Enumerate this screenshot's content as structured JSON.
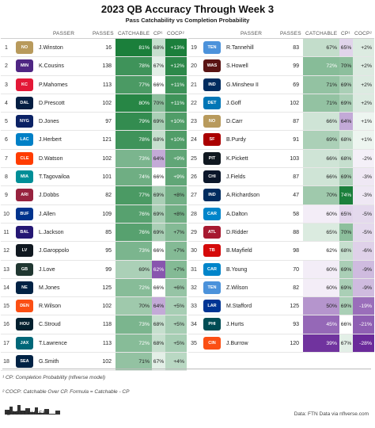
{
  "title": "2023 QB Accuracy Through Week 3",
  "subtitle": "Pass Catchability vs Completion Probability",
  "columns": {
    "passer": "PASSER",
    "passes": "PASSES",
    "catchable": "CATCHABLE",
    "cp": "CP¹",
    "cocp": "COCP²"
  },
  "footnote1": "¹ CP: Completion Probability (nflverse model)",
  "footnote2": "² COCP: Catchable Over CP. Formula = Catchable - CP",
  "brand": "@JOSEPHJEFE",
  "source": "Data: FTN Data via nflverse.com",
  "colors": {
    "green_dark": "#1b7f3b",
    "green_light": "#e8f5e9",
    "purple_dark": "#6a2a9a",
    "purple_light": "#f3e9f7"
  },
  "chart_data": {
    "type": "table",
    "rows": [
      {
        "rank": "1",
        "logo": "NO",
        "logo_color": "#b89a5c",
        "passer": "J.Winston",
        "passes": "16",
        "catchable": "81%",
        "catchable_v": 81,
        "cp": "68%",
        "cp_v": 68,
        "cocp": "+13%",
        "cocp_v": 13
      },
      {
        "rank": "2",
        "logo": "MIN",
        "logo_color": "#4f2683",
        "passer": "K.Cousins",
        "passes": "138",
        "catchable": "78%",
        "catchable_v": 78,
        "cp": "67%",
        "cp_v": 67,
        "cocp": "+12%",
        "cocp_v": 12
      },
      {
        "rank": "3",
        "logo": "KC",
        "logo_color": "#e31837",
        "passer": "P.Mahomes",
        "passes": "113",
        "catchable": "77%",
        "catchable_v": 77,
        "cp": "66%",
        "cp_v": 66,
        "cocp": "+11%",
        "cocp_v": 11
      },
      {
        "rank": "4",
        "logo": "DAL",
        "logo_color": "#041e42",
        "passer": "D.Prescott",
        "passes": "102",
        "catchable": "80%",
        "catchable_v": 80,
        "cp": "70%",
        "cp_v": 70,
        "cocp": "+11%",
        "cocp_v": 11
      },
      {
        "rank": "5",
        "logo": "NYG",
        "logo_color": "#0b2265",
        "passer": "D.Jones",
        "passes": "97",
        "catchable": "79%",
        "catchable_v": 79,
        "cp": "69%",
        "cp_v": 69,
        "cocp": "+10%",
        "cocp_v": 10
      },
      {
        "rank": "6",
        "logo": "LAC",
        "logo_color": "#0080c6",
        "passer": "J.Herbert",
        "passes": "121",
        "catchable": "78%",
        "catchable_v": 78,
        "cp": "68%",
        "cp_v": 68,
        "cocp": "+10%",
        "cocp_v": 10
      },
      {
        "rank": "7",
        "logo": "CLE",
        "logo_color": "#ff3c00",
        "passer": "D.Watson",
        "passes": "102",
        "catchable": "73%",
        "catchable_v": 73,
        "cp": "64%",
        "cp_v": 64,
        "cocp": "+9%",
        "cocp_v": 9
      },
      {
        "rank": "8",
        "logo": "MIA",
        "logo_color": "#008e97",
        "passer": "T.Tagovailoa",
        "passes": "101",
        "catchable": "74%",
        "catchable_v": 74,
        "cp": "66%",
        "cp_v": 66,
        "cocp": "+9%",
        "cocp_v": 9
      },
      {
        "rank": "9",
        "logo": "ARI",
        "logo_color": "#97233f",
        "passer": "J.Dobbs",
        "passes": "82",
        "catchable": "77%",
        "catchable_v": 77,
        "cp": "69%",
        "cp_v": 69,
        "cocp": "+8%",
        "cocp_v": 8
      },
      {
        "rank": "10",
        "logo": "BUF",
        "logo_color": "#00338d",
        "passer": "J.Allen",
        "passes": "109",
        "catchable": "76%",
        "catchable_v": 76,
        "cp": "69%",
        "cp_v": 69,
        "cocp": "+8%",
        "cocp_v": 8
      },
      {
        "rank": "11",
        "logo": "BAL",
        "logo_color": "#241773",
        "passer": "L.Jackson",
        "passes": "85",
        "catchable": "76%",
        "catchable_v": 76,
        "cp": "69%",
        "cp_v": 69,
        "cocp": "+7%",
        "cocp_v": 7
      },
      {
        "rank": "12",
        "logo": "LV",
        "logo_color": "#101820",
        "passer": "J.Garoppolo",
        "passes": "95",
        "catchable": "73%",
        "catchable_v": 73,
        "cp": "66%",
        "cp_v": 66,
        "cocp": "+7%",
        "cocp_v": 7
      },
      {
        "rank": "13",
        "logo": "GB",
        "logo_color": "#203731",
        "passer": "J.Love",
        "passes": "99",
        "catchable": "69%",
        "catchable_v": 69,
        "cp": "62%",
        "cp_v": 62,
        "cocp": "+7%",
        "cocp_v": 7
      },
      {
        "rank": "14",
        "logo": "NE",
        "logo_color": "#002244",
        "passer": "M.Jones",
        "passes": "125",
        "catchable": "72%",
        "catchable_v": 72,
        "cp": "66%",
        "cp_v": 66,
        "cocp": "+6%",
        "cocp_v": 6
      },
      {
        "rank": "15",
        "logo": "DEN",
        "logo_color": "#fb4f14",
        "passer": "R.Wilson",
        "passes": "102",
        "catchable": "70%",
        "catchable_v": 70,
        "cp": "64%",
        "cp_v": 64,
        "cocp": "+5%",
        "cocp_v": 5
      },
      {
        "rank": "16",
        "logo": "HOU",
        "logo_color": "#03202f",
        "passer": "C.Stroud",
        "passes": "118",
        "catchable": "73%",
        "catchable_v": 73,
        "cp": "68%",
        "cp_v": 68,
        "cocp": "+5%",
        "cocp_v": 5
      },
      {
        "rank": "17",
        "logo": "JAX",
        "logo_color": "#006778",
        "passer": "T.Lawrence",
        "passes": "113",
        "catchable": "72%",
        "catchable_v": 72,
        "cp": "68%",
        "cp_v": 68,
        "cocp": "+5%",
        "cocp_v": 5
      },
      {
        "rank": "18",
        "logo": "SEA",
        "logo_color": "#002244",
        "passer": "G.Smith",
        "passes": "102",
        "catchable": "71%",
        "catchable_v": 71,
        "cp": "67%",
        "cp_v": 67,
        "cocp": "+4%",
        "cocp_v": 4
      },
      {
        "rank": "19",
        "logo": "TEN",
        "logo_color": "#4b92db",
        "passer": "R.Tannehill",
        "passes": "83",
        "catchable": "67%",
        "catchable_v": 67,
        "cp": "65%",
        "cp_v": 65,
        "cocp": "+2%",
        "cocp_v": 2
      },
      {
        "rank": "20",
        "logo": "WAS",
        "logo_color": "#5a1414",
        "passer": "S.Howell",
        "passes": "99",
        "catchable": "72%",
        "catchable_v": 72,
        "cp": "70%",
        "cp_v": 70,
        "cocp": "+2%",
        "cocp_v": 2
      },
      {
        "rank": "21",
        "logo": "IND",
        "logo_color": "#002c5f",
        "passer": "G.Minshew II",
        "passes": "69",
        "catchable": "71%",
        "catchable_v": 71,
        "cp": "69%",
        "cp_v": 69,
        "cocp": "+2%",
        "cocp_v": 2
      },
      {
        "rank": "22",
        "logo": "DET",
        "logo_color": "#0076b6",
        "passer": "J.Goff",
        "passes": "102",
        "catchable": "71%",
        "catchable_v": 71,
        "cp": "69%",
        "cp_v": 69,
        "cocp": "+2%",
        "cocp_v": 2
      },
      {
        "rank": "23",
        "logo": "NO",
        "logo_color": "#b89a5c",
        "passer": "D.Carr",
        "passes": "87",
        "catchable": "66%",
        "catchable_v": 66,
        "cp": "64%",
        "cp_v": 64,
        "cocp": "+1%",
        "cocp_v": 1
      },
      {
        "rank": "24",
        "logo": "SF",
        "logo_color": "#aa0000",
        "passer": "B.Purdy",
        "passes": "91",
        "catchable": "69%",
        "catchable_v": 69,
        "cp": "68%",
        "cp_v": 68,
        "cocp": "+1%",
        "cocp_v": 1
      },
      {
        "rank": "25",
        "logo": "PIT",
        "logo_color": "#101820",
        "passer": "K.Pickett",
        "passes": "103",
        "catchable": "66%",
        "catchable_v": 66,
        "cp": "68%",
        "cp_v": 68,
        "cocp": "-2%",
        "cocp_v": -2
      },
      {
        "rank": "26",
        "logo": "CHI",
        "logo_color": "#0b162a",
        "passer": "J.Fields",
        "passes": "87",
        "catchable": "66%",
        "catchable_v": 66,
        "cp": "69%",
        "cp_v": 69,
        "cocp": "-3%",
        "cocp_v": -3
      },
      {
        "rank": "27",
        "logo": "IND",
        "logo_color": "#002c5f",
        "passer": "A.Richardson",
        "passes": "47",
        "catchable": "70%",
        "catchable_v": 70,
        "cp": "74%",
        "cp_v": 74,
        "cocp": "-3%",
        "cocp_v": -3
      },
      {
        "rank": "28",
        "logo": "CAR",
        "logo_color": "#0085ca",
        "passer": "A.Dalton",
        "passes": "58",
        "catchable": "60%",
        "catchable_v": 60,
        "cp": "65%",
        "cp_v": 65,
        "cocp": "-5%",
        "cocp_v": -5
      },
      {
        "rank": "29",
        "logo": "ATL",
        "logo_color": "#a71930",
        "passer": "D.Ridder",
        "passes": "88",
        "catchable": "65%",
        "catchable_v": 65,
        "cp": "70%",
        "cp_v": 70,
        "cocp": "-5%",
        "cocp_v": -5
      },
      {
        "rank": "30",
        "logo": "TB",
        "logo_color": "#d50a0a",
        "passer": "B.Mayfield",
        "passes": "98",
        "catchable": "62%",
        "catchable_v": 62,
        "cp": "68%",
        "cp_v": 68,
        "cocp": "-6%",
        "cocp_v": -6
      },
      {
        "rank": "31",
        "logo": "CAR",
        "logo_color": "#0085ca",
        "passer": "B.Young",
        "passes": "70",
        "catchable": "60%",
        "catchable_v": 60,
        "cp": "69%",
        "cp_v": 69,
        "cocp": "-9%",
        "cocp_v": -9
      },
      {
        "rank": "32",
        "logo": "TEN",
        "logo_color": "#4b92db",
        "passer": "Z.Wilson",
        "passes": "82",
        "catchable": "60%",
        "catchable_v": 60,
        "cp": "69%",
        "cp_v": 69,
        "cocp": "-9%",
        "cocp_v": -9
      },
      {
        "rank": "33",
        "logo": "LAR",
        "logo_color": "#003594",
        "passer": "M.Stafford",
        "passes": "125",
        "catchable": "50%",
        "catchable_v": 50,
        "cp": "69%",
        "cp_v": 69,
        "cocp": "-19%",
        "cocp_v": -19
      },
      {
        "rank": "34",
        "logo": "PHI",
        "logo_color": "#004c54",
        "passer": "J.Hurts",
        "passes": "93",
        "catchable": "45%",
        "catchable_v": 45,
        "cp": "66%",
        "cp_v": 66,
        "cocp": "-21%",
        "cocp_v": -21
      },
      {
        "rank": "35",
        "logo": "CIN",
        "logo_color": "#fb4f14",
        "passer": "J.Burrow",
        "passes": "120",
        "catchable": "39%",
        "catchable_v": 39,
        "cp": "67%",
        "cp_v": 67,
        "cocp": "-28%",
        "cocp_v": -28
      }
    ]
  }
}
